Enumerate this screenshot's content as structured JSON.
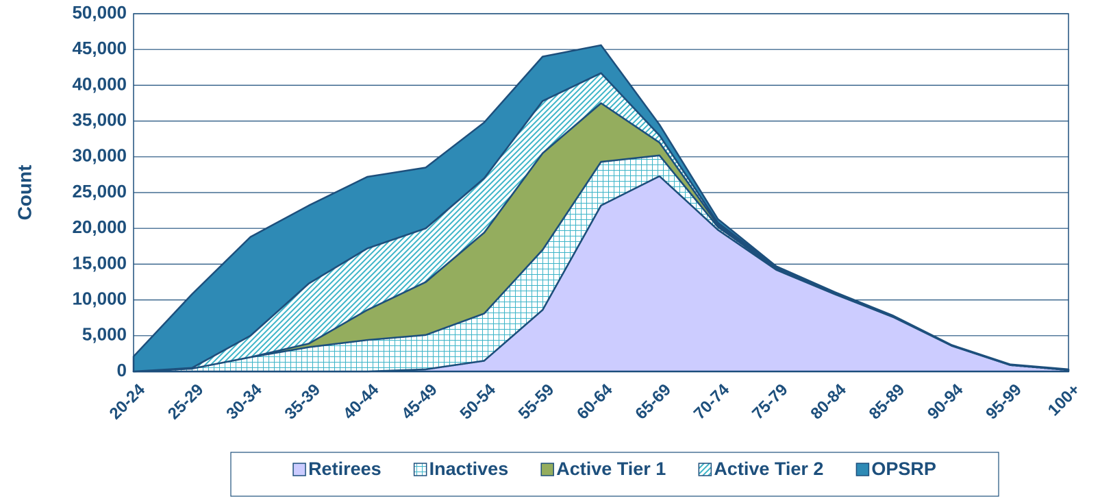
{
  "chart_data": {
    "type": "area",
    "stacked": true,
    "y_label": "Count",
    "categories": [
      "20-24",
      "25-29",
      "30-34",
      "35-39",
      "40-44",
      "45-49",
      "50-54",
      "55-59",
      "60-64",
      "65-69",
      "70-74",
      "75-79",
      "80-84",
      "85-89",
      "90-94",
      "95-99",
      "100+"
    ],
    "series": [
      {
        "name": "Retirees",
        "color": "#ccccff",
        "values": [
          0,
          0,
          0,
          0,
          0,
          300,
          1500,
          8600,
          23200,
          27300,
          19800,
          14200,
          10800,
          7600,
          3600,
          900,
          200
        ]
      },
      {
        "name": "Inactives",
        "color": "#3cb4c8",
        "pattern": "grid",
        "values": [
          0,
          400,
          2000,
          3400,
          4400,
          4800,
          6600,
          8400,
          6100,
          2900,
          400,
          200,
          100,
          100,
          0,
          0,
          0
        ]
      },
      {
        "name": "Active Tier 1",
        "color": "#94ad5e",
        "values": [
          0,
          0,
          0,
          500,
          4200,
          7400,
          11300,
          13500,
          8200,
          1800,
          300,
          100,
          100,
          0,
          0,
          0,
          0
        ]
      },
      {
        "name": "Active Tier 2",
        "color": "#3cb4c8",
        "pattern": "hatch",
        "values": [
          0,
          100,
          3000,
          8400,
          8600,
          7500,
          7600,
          7300,
          4200,
          1000,
          300,
          100,
          0,
          0,
          0,
          0,
          0
        ]
      },
      {
        "name": "OPSRP",
        "color": "#2e8ab5",
        "values": [
          2100,
          10300,
          13800,
          10900,
          10000,
          8500,
          7800,
          6200,
          3900,
          1500,
          500,
          100,
          100,
          100,
          100,
          100,
          100
        ]
      }
    ],
    "ylim": [
      0,
      50000
    ],
    "yticks": [
      0,
      {
        "value": 5000,
        "label": "5,000"
      },
      {
        "value": 10000,
        "label": "10,000"
      },
      {
        "value": 15000,
        "label": "15,000"
      },
      {
        "value": 20000,
        "label": "20,000"
      },
      {
        "value": 25000,
        "label": "25,000"
      },
      {
        "value": 30000,
        "label": "30,000"
      },
      {
        "value": 35000,
        "label": "35,000"
      },
      {
        "value": 40000,
        "label": "40,000"
      },
      {
        "value": 45000,
        "label": "45,000"
      },
      {
        "value": 50000,
        "label": "50,000"
      }
    ],
    "grid": true,
    "legend": "bottom"
  }
}
